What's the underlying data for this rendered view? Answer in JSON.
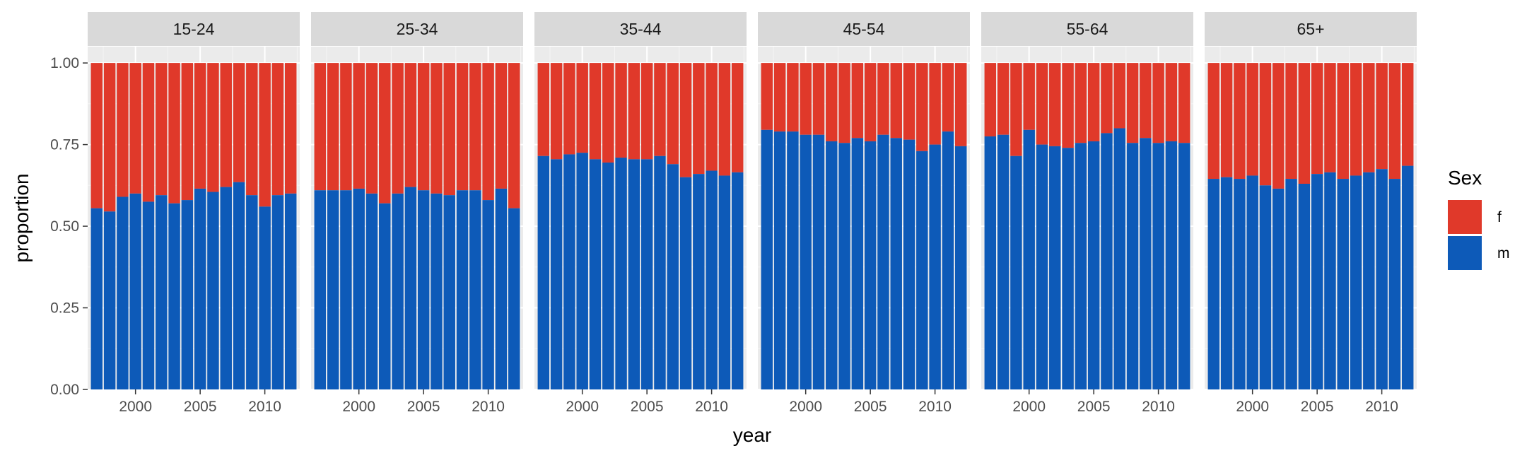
{
  "chart_data": {
    "type": "bar",
    "stacked": true,
    "xlabel": "year",
    "ylabel": "proportion",
    "ylim": [
      0,
      1.05
    ],
    "xlim": [
      1996.3,
      2012.7
    ],
    "y_ticks": [
      0,
      0.25,
      0.5,
      0.75,
      1
    ],
    "y_tick_labels": [
      "0.00",
      "0.25",
      "0.50",
      "0.75",
      "1.00"
    ],
    "x_ticks": [
      2000,
      2005,
      2010
    ],
    "x_tick_labels": [
      "2000",
      "2005",
      "2010"
    ],
    "years": [
      1997,
      1998,
      1999,
      2000,
      2001,
      2002,
      2003,
      2004,
      2005,
      2006,
      2007,
      2008,
      2009,
      2010,
      2011,
      2012
    ],
    "legend": {
      "title": "Sex",
      "position": "right",
      "items": [
        {
          "label": "f",
          "color": "#E0392A"
        },
        {
          "label": "m",
          "color": "#0D5AB8"
        }
      ]
    },
    "panels": [
      {
        "label": "15-24",
        "m": [
          0.555,
          0.545,
          0.59,
          0.6,
          0.575,
          0.595,
          0.57,
          0.58,
          0.615,
          0.605,
          0.62,
          0.635,
          0.595,
          0.56,
          0.595,
          0.6
        ]
      },
      {
        "label": "25-34",
        "m": [
          0.61,
          0.61,
          0.61,
          0.615,
          0.6,
          0.57,
          0.6,
          0.62,
          0.61,
          0.6,
          0.595,
          0.61,
          0.61,
          0.58,
          0.615,
          0.555
        ]
      },
      {
        "label": "35-44",
        "m": [
          0.715,
          0.705,
          0.72,
          0.725,
          0.705,
          0.695,
          0.71,
          0.705,
          0.705,
          0.715,
          0.69,
          0.65,
          0.66,
          0.67,
          0.655,
          0.665
        ]
      },
      {
        "label": "45-54",
        "m": [
          0.795,
          0.79,
          0.79,
          0.78,
          0.78,
          0.76,
          0.755,
          0.77,
          0.76,
          0.78,
          0.77,
          0.765,
          0.73,
          0.75,
          0.79,
          0.745
        ]
      },
      {
        "label": "55-64",
        "m": [
          0.775,
          0.78,
          0.715,
          0.795,
          0.75,
          0.745,
          0.74,
          0.755,
          0.76,
          0.785,
          0.8,
          0.755,
          0.77,
          0.755,
          0.76,
          0.755
        ]
      },
      {
        "label": "65+",
        "m": [
          0.645,
          0.65,
          0.645,
          0.655,
          0.625,
          0.615,
          0.645,
          0.63,
          0.66,
          0.665,
          0.645,
          0.655,
          0.665,
          0.675,
          0.645,
          0.685
        ]
      }
    ]
  }
}
